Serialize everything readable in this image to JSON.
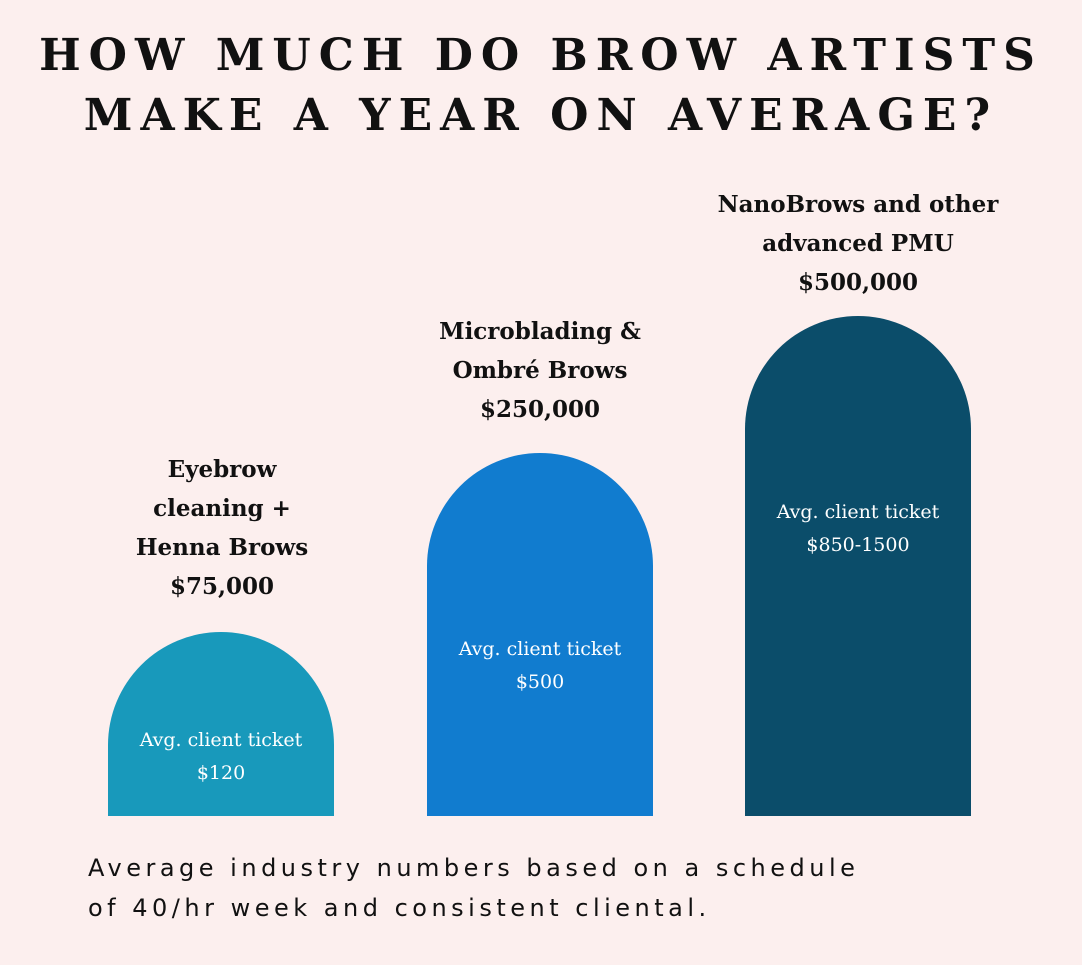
{
  "title_lines": [
    "HOW MUCH DO BROW ARTISTS",
    "MAKE A YEAR ON AVERAGE?"
  ],
  "colors": {
    "background": "#fcefee",
    "bar_1": "#1899bb",
    "bar_2": "#117ccf",
    "bar_3": "#0b4d6a",
    "text": "#111111",
    "ticket_text": "#ffffff"
  },
  "chart_data": {
    "type": "bar",
    "categories": [
      "Eyebrow cleaning + Henna Brows",
      "Microblading & Ombré Brows",
      "NanoBrows and other advanced PMU"
    ],
    "values": [
      75000,
      250000,
      500000
    ],
    "value_labels": [
      "$75,000",
      "$250,000",
      "$500,000"
    ],
    "ticket_labels": [
      "$120",
      "$500",
      "$850-1500"
    ],
    "ticket_caption": "Avg. client ticket",
    "category_lines": [
      [
        "Eyebrow",
        "cleaning +",
        "Henna Brows"
      ],
      [
        "Microblading &",
        "Ombré Brows"
      ],
      [
        "NanoBrows and other",
        "advanced PMU"
      ]
    ],
    "title": "",
    "xlabel": "",
    "ylabel": "",
    "grid": false,
    "legend": "none"
  },
  "footnote_lines": [
    "Average industry numbers based on a schedule",
    "of 40/hr week and consistent cliental."
  ]
}
